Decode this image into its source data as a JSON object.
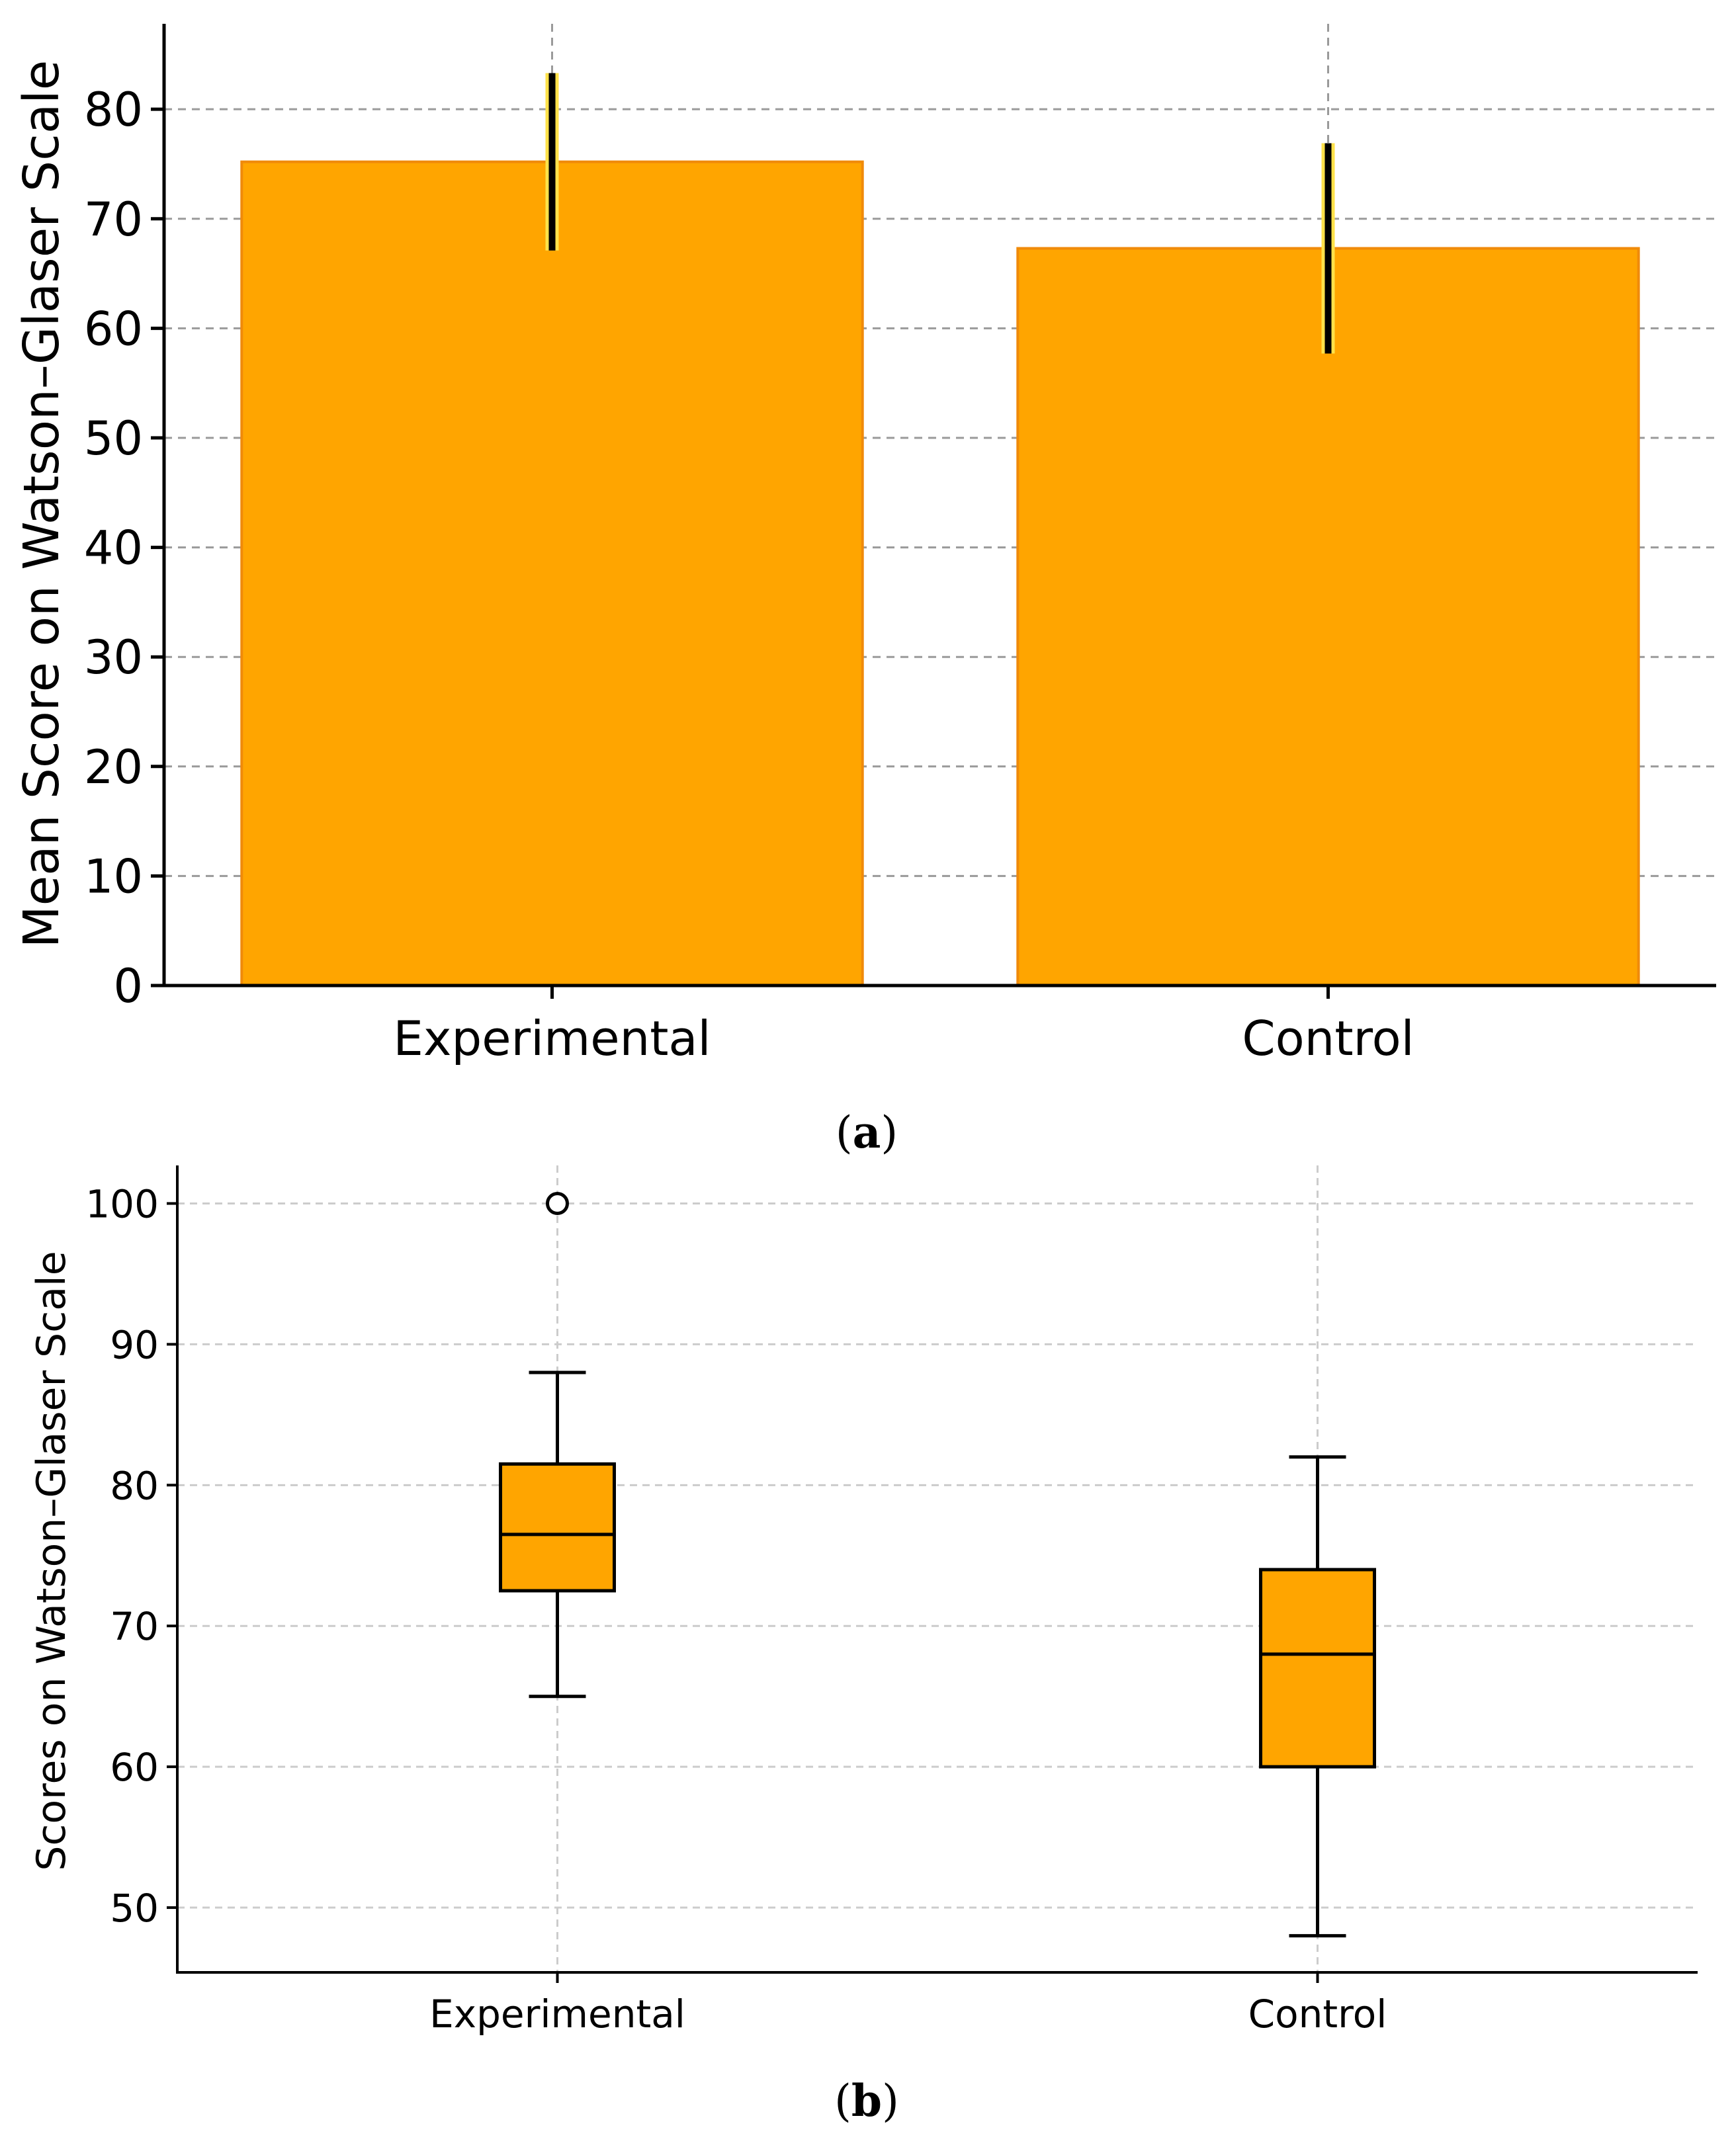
{
  "chart_data": [
    {
      "type": "bar",
      "panel_label_open": "(",
      "panel_label_letter": "a",
      "panel_label_close": ")",
      "categories": [
        "Experimental",
        "Control"
      ],
      "values": [
        75.2,
        67.3
      ],
      "error_high": [
        83.3,
        76.9
      ],
      "error_low": [
        67.1,
        57.7
      ],
      "ylabel": "Mean Score on Watson–Glaser Scale",
      "ylim": [
        0,
        87.8
      ],
      "yticks": [
        "0",
        "10",
        "20",
        "30",
        "40",
        "50",
        "60",
        "70",
        "80"
      ],
      "ytick_values": [
        0,
        10,
        20,
        30,
        40,
        50,
        60,
        70,
        80
      ],
      "grid": true,
      "colors": {
        "bar": "#FFA500",
        "bar_edge": "#F08A0A",
        "error": "#000000",
        "grid": "#9a9a9a"
      }
    },
    {
      "type": "box",
      "panel_label_open": "(",
      "panel_label_letter": "b",
      "panel_label_close": ")",
      "categories": [
        "Experimental",
        "Control"
      ],
      "boxes": [
        {
          "name": "Experimental",
          "whisker_low": 65,
          "q1": 72.5,
          "median": 76.5,
          "q3": 81.5,
          "whisker_high": 88,
          "outliers": [
            100
          ]
        },
        {
          "name": "Control",
          "whisker_low": 48,
          "q1": 60,
          "median": 68,
          "q3": 74,
          "whisker_high": 82,
          "outliers": []
        }
      ],
      "ylabel": "Scores on Watson–Glaser Scale",
      "ylim": [
        45.4,
        102.7
      ],
      "yticks": [
        "50",
        "60",
        "70",
        "80",
        "90",
        "100"
      ],
      "ytick_values": [
        50,
        60,
        70,
        80,
        90,
        100
      ],
      "grid": true,
      "colors": {
        "box": "#FFA500",
        "edge": "#000000",
        "grid": "#cccccc"
      }
    }
  ]
}
